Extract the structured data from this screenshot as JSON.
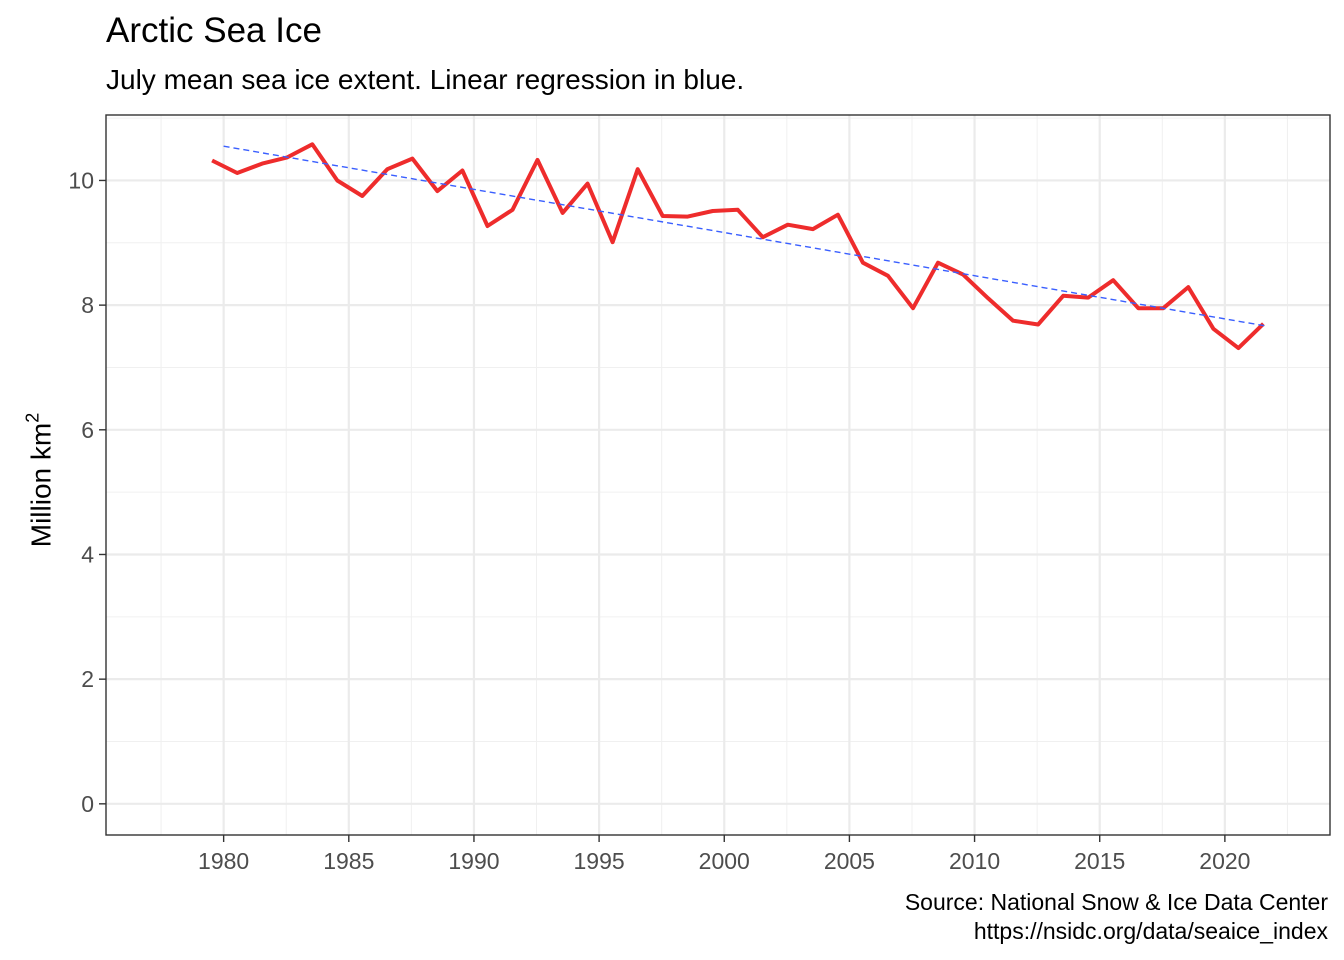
{
  "chart_data": {
    "type": "line",
    "title": "Arctic Sea Ice",
    "subtitle": "July mean sea ice extent. Linear regression in blue.",
    "ylabel": "Million km",
    "ylabel_superscript": "2",
    "caption": [
      "Source: National Snow & Ice Data Center",
      "https://nsidc.org/data/seaice_index"
    ],
    "xlim": [
      1975.3,
      2024.2
    ],
    "ylim": [
      -0.5,
      11.05
    ],
    "xticks": [
      1980,
      1985,
      1990,
      1995,
      2000,
      2005,
      2010,
      2015,
      2020
    ],
    "yticks": [
      0,
      2,
      4,
      6,
      8,
      10
    ],
    "grid": true,
    "series": [
      {
        "color": "#ee2c2c",
        "style": "solid",
        "x": [
          1979.54,
          1980.54,
          1981.54,
          1982.54,
          1983.54,
          1984.54,
          1985.54,
          1986.54,
          1987.54,
          1988.54,
          1989.54,
          1990.54,
          1991.54,
          1992.54,
          1993.54,
          1994.54,
          1995.54,
          1996.54,
          1997.54,
          1998.54,
          1999.54,
          2000.54,
          2001.54,
          2002.54,
          2003.54,
          2004.54,
          2005.54,
          2006.54,
          2007.54,
          2008.54,
          2009.54,
          2010.54,
          2011.54,
          2012.54,
          2013.54,
          2014.54,
          2015.54,
          2016.54,
          2017.54,
          2018.54,
          2019.54,
          2020.54,
          2021.54
        ],
        "values": [
          10.32,
          10.12,
          10.27,
          10.37,
          10.58,
          10.0,
          9.75,
          10.18,
          10.35,
          9.83,
          10.16,
          9.27,
          9.53,
          10.33,
          9.48,
          9.95,
          9.01,
          10.18,
          9.43,
          9.42,
          9.51,
          9.53,
          9.09,
          9.29,
          9.22,
          9.45,
          8.68,
          8.47,
          7.95,
          8.68,
          8.49,
          8.11,
          7.75,
          7.69,
          8.15,
          8.12,
          8.4,
          7.95,
          7.95,
          8.29,
          7.62,
          7.31,
          7.7
        ]
      },
      {
        "color": "#3a5fff",
        "style": "dashed",
        "x": [
          1980.0,
          2021.58
        ],
        "values": [
          10.55,
          7.67
        ]
      }
    ]
  }
}
